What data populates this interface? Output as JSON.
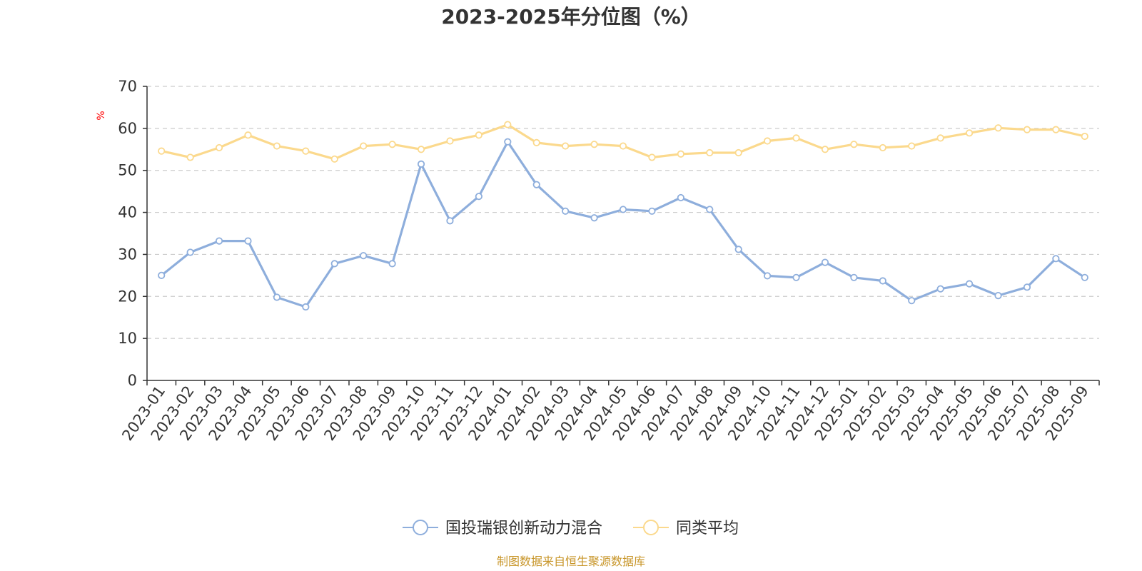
{
  "chart_data": {
    "type": "line",
    "title": "2023-2025年分位图（%）",
    "ylabel": "%",
    "xlabel": "",
    "ylim": [
      0,
      70
    ],
    "yticks": [
      0,
      10,
      20,
      30,
      40,
      50,
      60,
      70
    ],
    "grid": "horizontal dashed",
    "legend_position": "bottom",
    "categories": [
      "2023-01",
      "2023-02",
      "2023-03",
      "2023-04",
      "2023-05",
      "2023-06",
      "2023-07",
      "2023-08",
      "2023-09",
      "2023-10",
      "2023-11",
      "2023-12",
      "2024-01",
      "2024-02",
      "2024-03",
      "2024-04",
      "2024-05",
      "2024-06",
      "2024-07",
      "2024-08",
      "2024-09",
      "2024-10",
      "2024-11",
      "2024-12",
      "2025-01",
      "2025-02",
      "2025-03",
      "2025-04",
      "2025-05",
      "2025-06",
      "2025-07",
      "2025-08",
      "2025-09"
    ],
    "series": [
      {
        "name": "国投瑞银创新动力混合",
        "color": "#8eaedc",
        "values": [
          25.0,
          30.5,
          33.2,
          33.2,
          19.8,
          17.5,
          27.8,
          29.7,
          27.8,
          51.5,
          38.0,
          43.8,
          56.8,
          46.6,
          40.3,
          38.7,
          40.7,
          40.3,
          43.5,
          40.7,
          31.2,
          24.9,
          24.5,
          28.1,
          24.5,
          23.7,
          19.0,
          21.8,
          23.0,
          20.2,
          22.2,
          29.0,
          24.5
        ]
      },
      {
        "name": "同类平均",
        "color": "#fbd98d",
        "values": [
          54.6,
          53.1,
          55.4,
          58.4,
          55.8,
          54.6,
          52.7,
          55.8,
          56.2,
          55.0,
          57.0,
          58.4,
          60.9,
          56.6,
          55.8,
          56.2,
          55.8,
          53.1,
          53.9,
          54.2,
          54.2,
          57.0,
          57.7,
          55.0,
          56.2,
          55.4,
          55.8,
          57.7,
          58.9,
          60.1,
          59.7,
          59.7,
          58.1
        ]
      }
    ]
  },
  "footer": {
    "source": "制图数据来自恒生聚源数据库"
  }
}
